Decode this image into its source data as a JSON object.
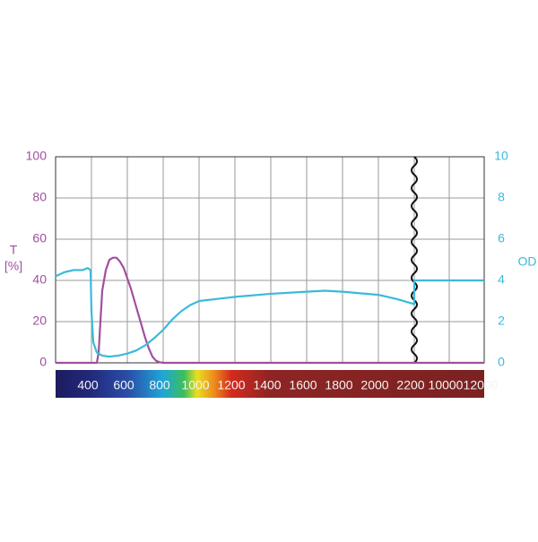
{
  "chart_data": {
    "type": "line",
    "x_break": [
      2200,
      8000
    ],
    "xlim": [
      200,
      12000
    ],
    "xticks": [
      400,
      600,
      800,
      1000,
      1200,
      1400,
      1600,
      1800,
      2000,
      2200,
      10000,
      12000
    ],
    "ylim": [
      0,
      100
    ],
    "yticks": [
      0,
      20,
      40,
      60,
      80,
      100
    ],
    "y2lim": [
      0,
      10
    ],
    "y2ticks": [
      0,
      2,
      4,
      6,
      8,
      10
    ],
    "ylabel": [
      "T",
      "[%]"
    ],
    "y2label": "OD",
    "grid": true,
    "series": [
      {
        "name": "T",
        "color": "#a0509e",
        "x": [
          200,
          400,
          430,
          440,
          450,
          460,
          480,
          500,
          520,
          540,
          560,
          580,
          600,
          620,
          640,
          660,
          680,
          700,
          720,
          740,
          760,
          780,
          800,
          2200,
          8000,
          12000
        ],
        "values": [
          0,
          0,
          0,
          5,
          20,
          35,
          45,
          50,
          51,
          51,
          49,
          46,
          41,
          36,
          30,
          24,
          18,
          12,
          7,
          3,
          1,
          0.3,
          0,
          0,
          0,
          0
        ]
      },
      {
        "name": "OD",
        "color": "#3cb9da",
        "axis": "y2",
        "x": [
          200,
          250,
          300,
          350,
          380,
          395,
          400,
          410,
          430,
          460,
          500,
          550,
          600,
          650,
          700,
          750,
          800,
          850,
          900,
          950,
          1000,
          1100,
          1200,
          1400,
          1600,
          1700,
          1800,
          2000,
          2100,
          2200,
          8000,
          12000
        ],
        "values": [
          4.2,
          4.4,
          4.5,
          4.5,
          4.6,
          4.5,
          2.5,
          1.0,
          0.5,
          0.35,
          0.3,
          0.35,
          0.45,
          0.6,
          0.85,
          1.2,
          1.6,
          2.1,
          2.5,
          2.8,
          3.0,
          3.1,
          3.2,
          3.35,
          3.45,
          3.5,
          3.45,
          3.3,
          3.1,
          2.85,
          4,
          4
        ]
      }
    ]
  }
}
